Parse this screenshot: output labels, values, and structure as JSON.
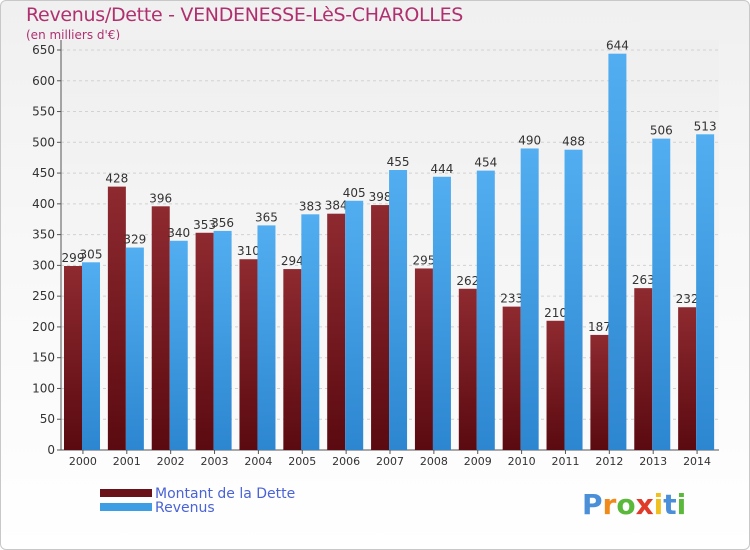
{
  "chart_data": {
    "type": "bar",
    "title": "Revenus/Dette - VENDENESSE-LèS-CHAROLLES",
    "subtitle": "(en milliers d'€)",
    "categories": [
      "2000",
      "2001",
      "2002",
      "2003",
      "2004",
      "2005",
      "2006",
      "2007",
      "2008",
      "2009",
      "2010",
      "2011",
      "2012",
      "2013",
      "2014"
    ],
    "series": [
      {
        "name": "Montant de la Dette",
        "color": "#7a1a22",
        "values": [
          299,
          428,
          396,
          353,
          310,
          294,
          384,
          398,
          295,
          262,
          233,
          210,
          187,
          263,
          232
        ]
      },
      {
        "name": "Revenus",
        "color": "#3e9ee4",
        "values": [
          305,
          329,
          340,
          356,
          365,
          383,
          405,
          455,
          444,
          454,
          490,
          488,
          644,
          506,
          513
        ]
      }
    ],
    "yticks": [
      "0",
      "50",
      "100",
      "150",
      "200",
      "250",
      "300",
      "350",
      "400",
      "450",
      "500",
      "550",
      "600",
      "650"
    ],
    "ylim": [
      0,
      650
    ],
    "grid": true,
    "legend_placement": "bottom-left"
  },
  "logo": {
    "text": "Proxiti",
    "letters": [
      "P",
      "r",
      "o",
      "x",
      "i",
      "t",
      "i"
    ],
    "colors": [
      "#4a8fd8",
      "#f08a1a",
      "#5ab83a",
      "#e03a2a",
      "#f0c020",
      "#4a8fd8",
      "#5ab83a"
    ]
  }
}
